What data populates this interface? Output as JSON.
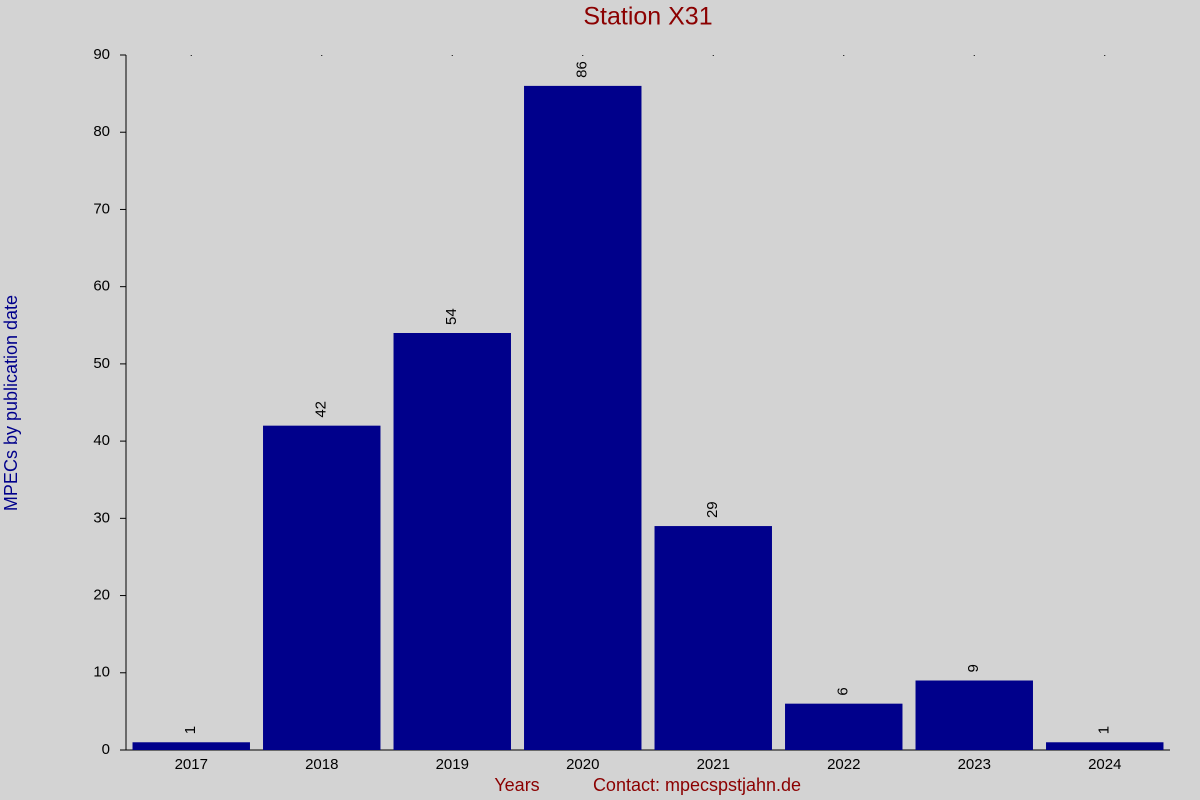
{
  "chart_data": {
    "type": "bar",
    "title": "Station X31",
    "y_label": "MPECs by publication date",
    "x_label": "Years",
    "footer": "Contact: mpecspstjahn.de",
    "categories": [
      "2017",
      "2018",
      "2019",
      "2020",
      "2021",
      "2022",
      "2023",
      "2024"
    ],
    "values": [
      1,
      42,
      54,
      86,
      29,
      6,
      9,
      1
    ],
    "color": "#00008b",
    "ylim": [
      0,
      90
    ],
    "yticks": [
      0,
      10,
      20,
      30,
      40,
      50,
      60,
      70,
      80,
      90
    ],
    "grid": false
  }
}
